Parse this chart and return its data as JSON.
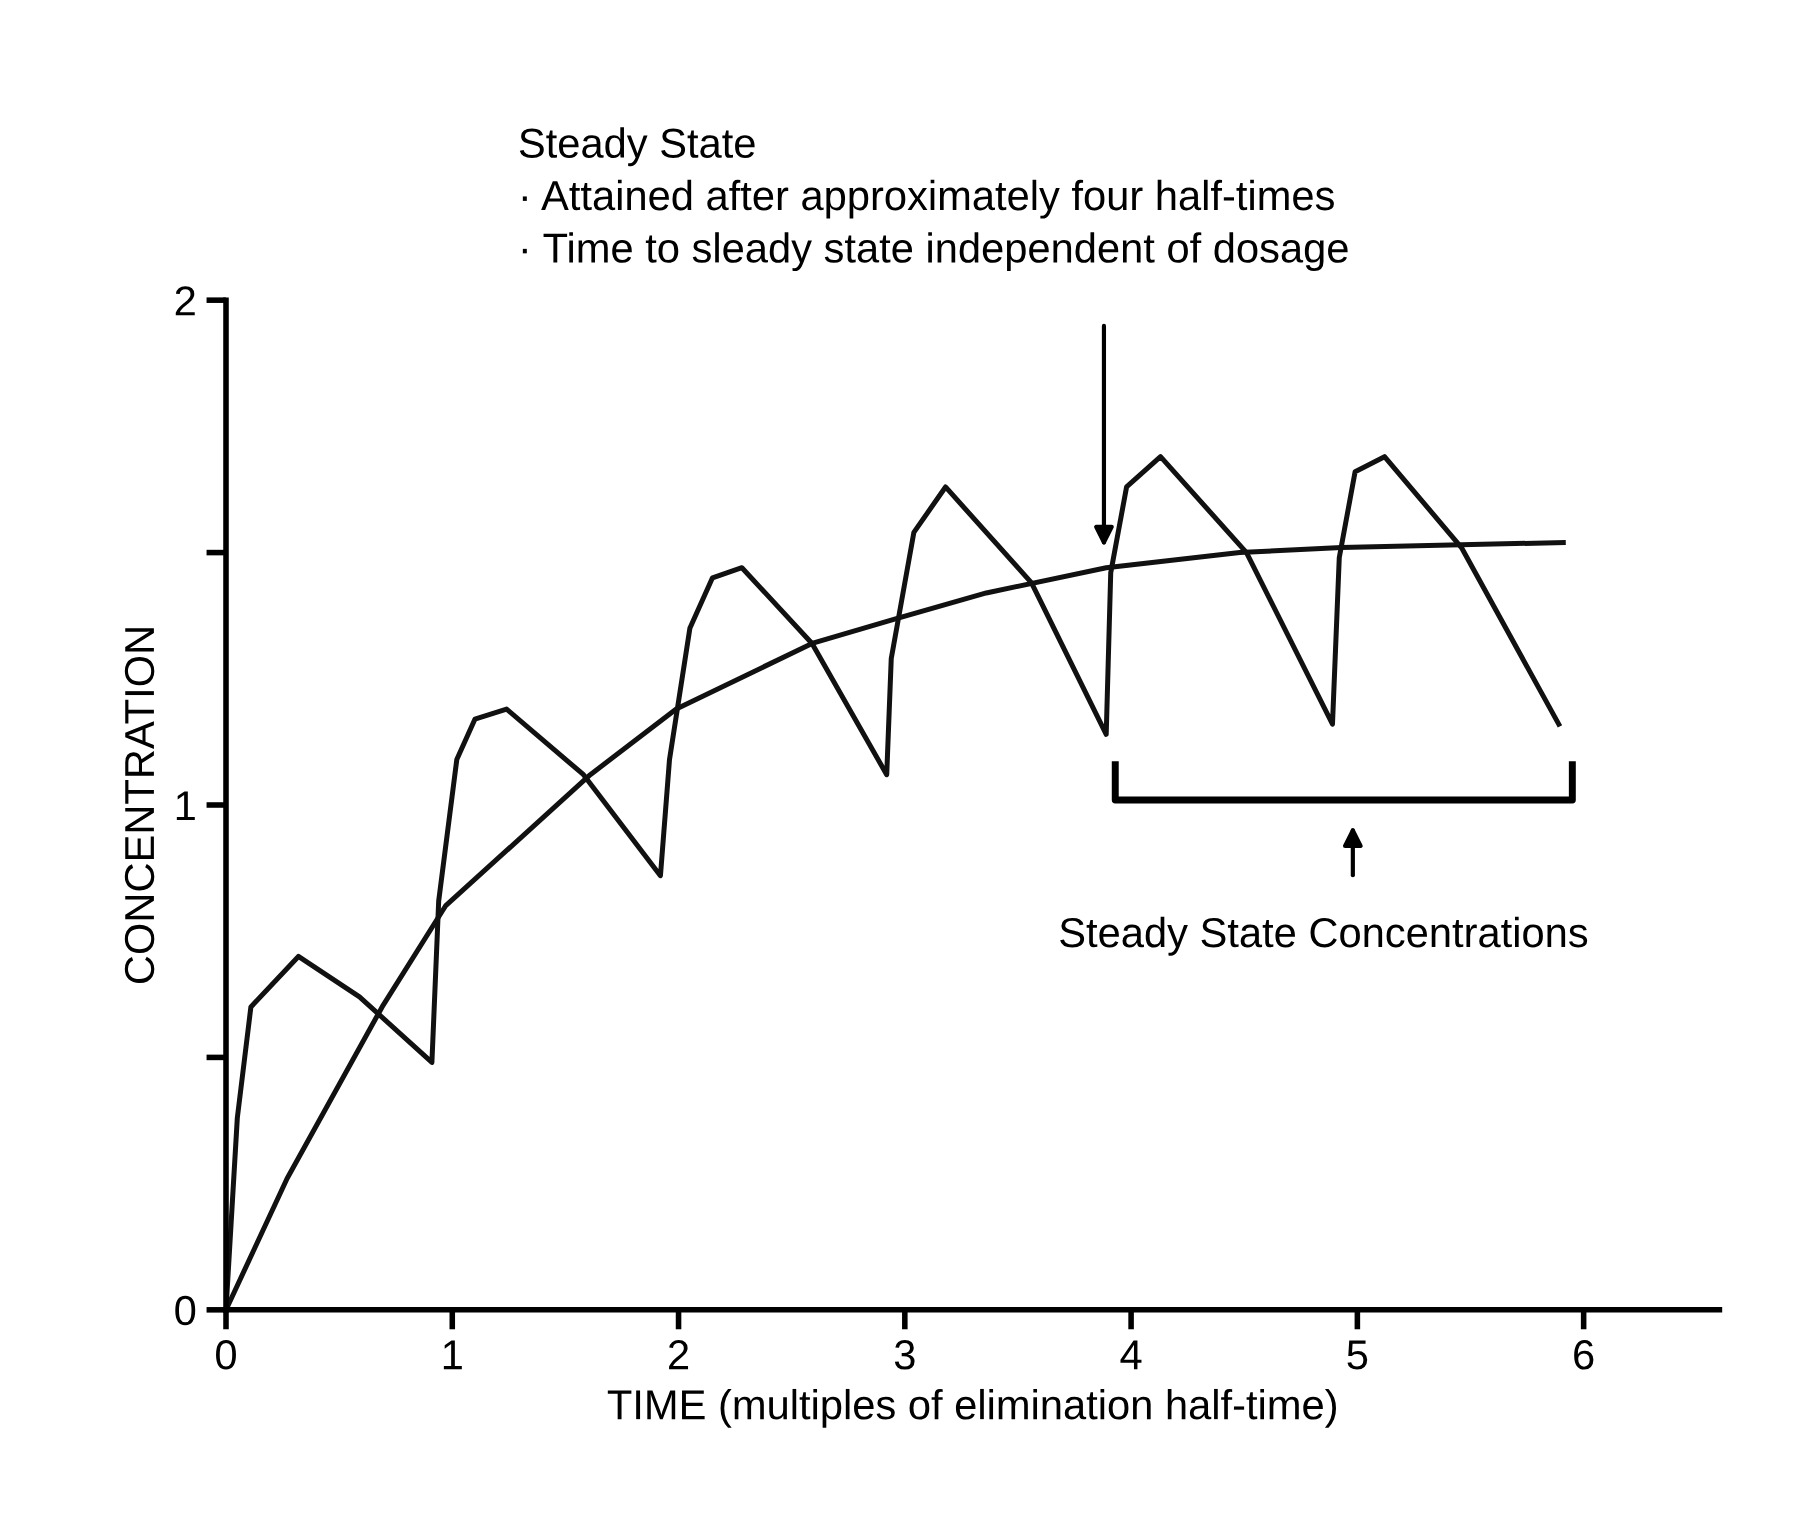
{
  "chart_data": {
    "type": "line",
    "xlabel": "TIME (multiples of elimination half-time)",
    "ylabel": "CONCENTRATION",
    "xlim": [
      0,
      6.6
    ],
    "ylim": [
      0,
      2
    ],
    "xticks": [
      0,
      1,
      2,
      3,
      4,
      5,
      6
    ],
    "yticks": [
      0,
      {
        "value": 0.5,
        "label": null
      },
      1,
      {
        "value": 1.5,
        "label": null
      },
      2
    ],
    "grid": false,
    "marker": "none",
    "line_style": "solid",
    "series": [
      {
        "color": "#111111",
        "x": [
          0,
          0.05,
          0.11,
          0.32,
          0.59,
          0.91,
          0.94,
          1.02,
          1.1,
          1.24,
          1.58,
          1.92,
          1.96,
          2.05,
          2.15,
          2.28,
          2.59,
          2.92,
          2.94,
          3.04,
          3.18,
          3.56,
          3.89,
          3.91,
          3.98,
          4.13,
          4.51,
          4.89,
          4.92,
          4.99,
          5.12,
          5.46,
          5.89
        ],
        "values": [
          0,
          0.38,
          0.6,
          0.7,
          0.62,
          0.49,
          0.81,
          1.09,
          1.17,
          1.19,
          1.06,
          0.86,
          1.09,
          1.35,
          1.45,
          1.47,
          1.32,
          1.06,
          1.29,
          1.54,
          1.63,
          1.44,
          1.14,
          1.46,
          1.63,
          1.69,
          1.5,
          1.16,
          1.49,
          1.66,
          1.69,
          1.51,
          1.16
        ]
      },
      {
        "color": "#111111",
        "x": [
          0,
          0.27,
          0.69,
          0.97,
          1.61,
          1.99,
          2.59,
          2.97,
          3.36,
          3.89,
          4.48,
          4.93,
          5.91
        ],
        "values": [
          0,
          0.26,
          0.6,
          0.8,
          1.06,
          1.19,
          1.32,
          1.37,
          1.42,
          1.47,
          1.5,
          1.51,
          1.52
        ]
      }
    ],
    "annotations": [
      "Steady State\n· Attained after approximately four half-times\n· Time to sleady state independent of dosage",
      "Steady State Concentrations"
    ]
  }
}
